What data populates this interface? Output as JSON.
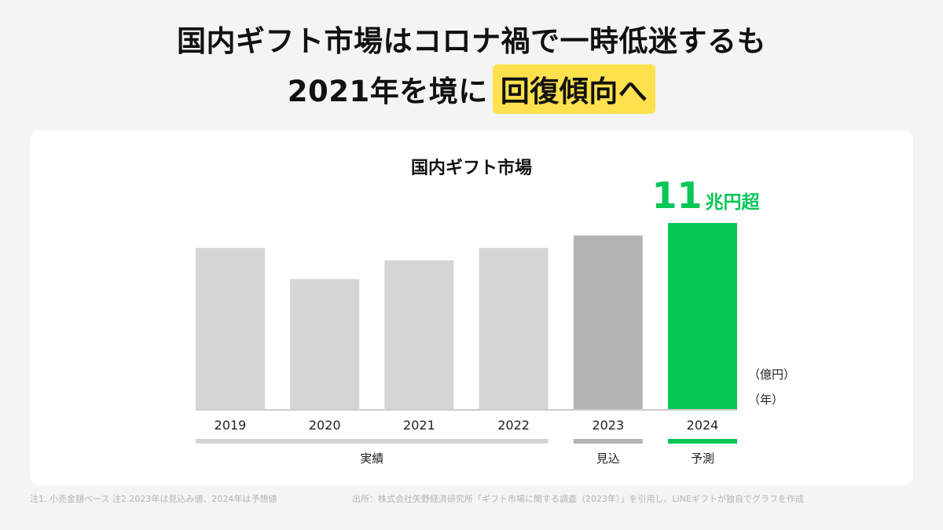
{
  "headline": {
    "line1": "国内ギフト市場はコロナ禍で一時低迷するも",
    "line2_prefix": "2021年を境に",
    "line2_highlight": "回復傾向へ"
  },
  "chart_data": {
    "type": "bar",
    "title": "国内ギフト市場",
    "categories": [
      "2019",
      "2020",
      "2021",
      "2022",
      "2023",
      "2024"
    ],
    "values": [
      104000,
      84000,
      96000,
      104000,
      112000,
      120000
    ],
    "ylim": [
      0,
      120000
    ],
    "status": [
      "actual",
      "actual",
      "actual",
      "actual",
      "estimate",
      "forecast"
    ],
    "colors": {
      "actual": "#d5d5d5",
      "estimate": "#b4b4b4",
      "forecast": "#06c755",
      "axis": "#cccccc"
    },
    "callout": {
      "number": "11",
      "suffix": "兆円超",
      "color": "#06c755"
    },
    "unit_labels": [
      "（億円）",
      "（年）"
    ],
    "grid": false,
    "legend_groups": [
      {
        "label": "実績",
        "from": 0,
        "to": 3,
        "status": "actual"
      },
      {
        "label": "見込",
        "from": 4,
        "to": 4,
        "status": "estimate"
      },
      {
        "label": "予測",
        "from": 5,
        "to": 5,
        "status": "forecast"
      }
    ]
  },
  "footnotes": {
    "notes": "注1. 小売金額ベース 注2.2023年は見込み値、2024年は予想値",
    "source": "出所：株式会社矢野経済研究所「ギフト市場に関する調査（2023年）」を引用し、LINEギフトが独自でグラフを作成"
  }
}
